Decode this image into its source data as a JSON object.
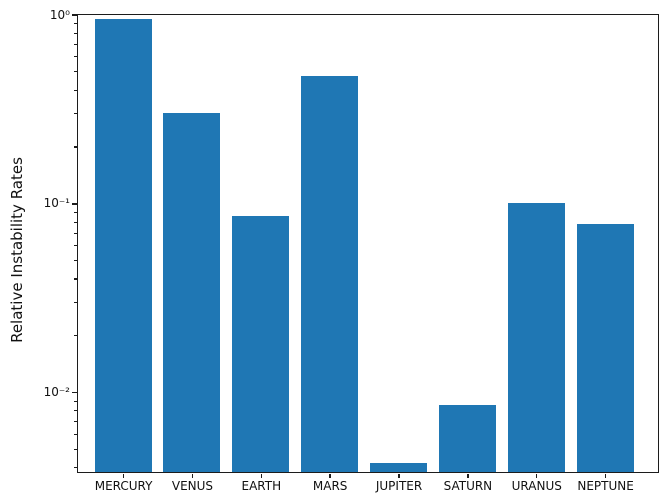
{
  "chart_data": {
    "type": "bar",
    "title": "",
    "xlabel": "",
    "ylabel": "Relative Instability Rates",
    "categories": [
      "MERCURY",
      "VENUS",
      "EARTH",
      "MARS",
      "JUPITER",
      "SATURN",
      "URANUS",
      "NEPTUNE"
    ],
    "values": [
      0.95,
      0.3,
      0.086,
      0.47,
      0.0042,
      0.0086,
      0.1,
      0.078
    ],
    "yscale": "log",
    "ylim": [
      0.0038,
      1.0
    ],
    "yticks": [
      1,
      0.1,
      0.01
    ],
    "ytick_labels": [
      "10⁰",
      "10⁻¹",
      "10⁻²"
    ],
    "bar_color": "#1f77b4",
    "axis_color": "#1c1c1c",
    "grid": false,
    "legend_position": "none"
  }
}
